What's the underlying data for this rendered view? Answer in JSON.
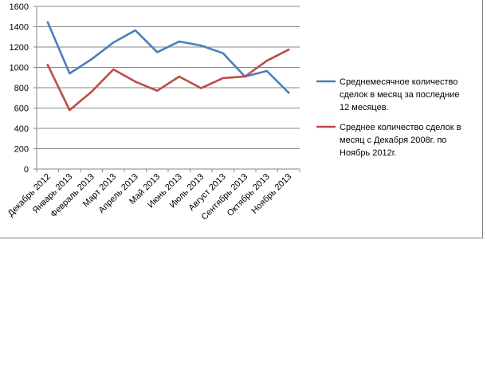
{
  "chart_data": {
    "type": "line",
    "title": "",
    "xlabel": "",
    "ylabel": "",
    "ylim": [
      0,
      1600
    ],
    "yticks": [
      0,
      200,
      400,
      600,
      800,
      1000,
      1200,
      1400,
      1600
    ],
    "grid": "horizontal",
    "legend_position": "right",
    "categories": [
      "Декабрь 2012",
      "Январь 2013",
      "Февраль 2013",
      "Март 2013",
      "Апрель 2013",
      "Май 2013",
      "Июнь 2013",
      "Июль 2013",
      "Август 2013",
      "Сентябрь 2013",
      "Октябрь 2013",
      "Ноябрь 2013"
    ],
    "series": [
      {
        "name": "Среднемесячное  количество сделок в месяц за последние 12 месяцев.",
        "legend_lines": [
          "Среднемесячное  количество",
          "сделок в месяц за последние",
          "12 месяцев."
        ],
        "color": "#4a7ebb",
        "values": [
          1445,
          940,
          1080,
          1245,
          1365,
          1150,
          1255,
          1215,
          1140,
          910,
          965,
          750
        ]
      },
      {
        "name": "Среднее  количество сделок в месяц с Декабря  2008г. по Ноябрь 2012г.",
        "legend_lines": [
          "Среднее  количество сделок в",
          "месяц с Декабря  2008г. по",
          "Ноябрь 2012г."
        ],
        "color": "#be4b48",
        "values": [
          1025,
          580,
          760,
          980,
          860,
          770,
          910,
          795,
          895,
          910,
          1065,
          1175
        ]
      }
    ]
  }
}
